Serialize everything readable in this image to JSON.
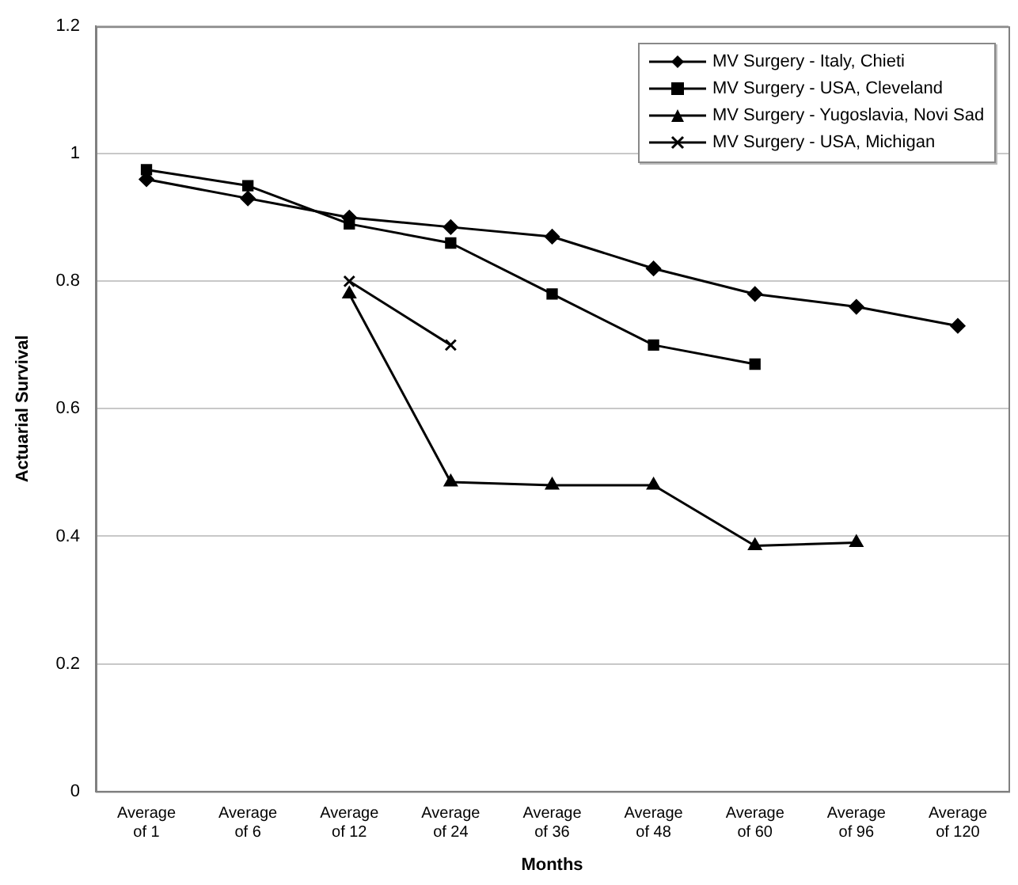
{
  "chart_data": {
    "type": "line",
    "xlabel": "Months",
    "ylabel": "Actuarial Survival",
    "categories": [
      "Average of 1",
      "Average of 6",
      "Average of 12",
      "Average of 24",
      "Average of 36",
      "Average of 48",
      "Average of 60",
      "Average of 96",
      "Average of 120"
    ],
    "series": [
      {
        "name": "MV Surgery - Italy, Chieti",
        "color": "#000000",
        "marker": "diamond",
        "values": [
          0.96,
          0.93,
          0.9,
          0.885,
          0.87,
          0.82,
          0.78,
          0.76,
          0.73
        ]
      },
      {
        "name": "MV Surgery - USA, Cleveland",
        "color": "#000000",
        "marker": "square",
        "values": [
          0.975,
          0.95,
          0.89,
          0.86,
          0.78,
          0.7,
          0.67,
          null,
          null
        ]
      },
      {
        "name": "MV Surgery - Yugoslavia, Novi Sad",
        "color": "#000000",
        "marker": "triangle",
        "values": [
          null,
          null,
          0.78,
          0.485,
          0.48,
          0.48,
          0.385,
          0.39,
          null
        ]
      },
      {
        "name": "MV Surgery - USA, Michigan",
        "color": "#000000",
        "marker": "cross",
        "values": [
          null,
          null,
          0.8,
          0.7,
          null,
          null,
          null,
          null,
          null
        ]
      }
    ],
    "ylim": [
      0,
      1.2
    ],
    "yticks": [
      0,
      0.2,
      0.4,
      0.6,
      0.8,
      1,
      1.2
    ],
    "grid": "y",
    "legend": "top right",
    "line_style": "solid"
  }
}
